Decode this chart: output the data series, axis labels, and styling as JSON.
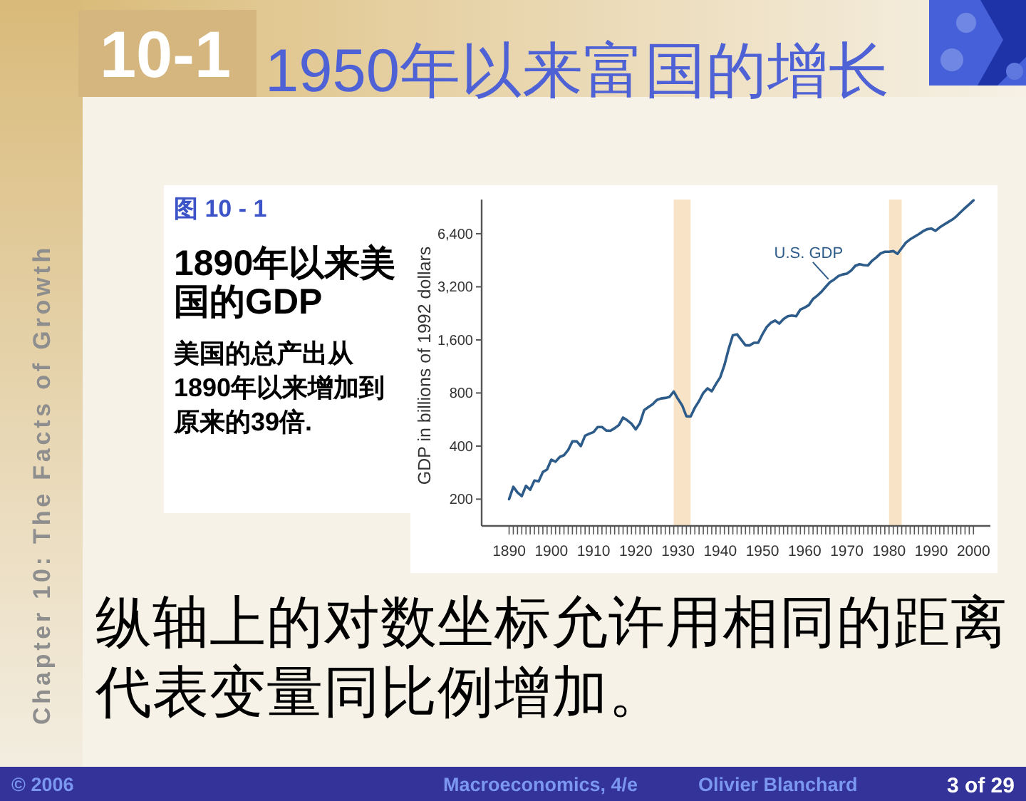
{
  "chart_data": {
    "type": "line",
    "title": "1890年以来美国的GDP",
    "subtitle": "美国的总产出从1890年以来增加到原来的39倍.",
    "ylabel": "GDP in billions of 1992 dollars",
    "annotations": [
      "10-1",
      "1950年以来富国的增长",
      "图 10 - 1",
      "纵轴上的对数坐标允许用相同的距离代表变量同比例增加。",
      "Chapter 10: The Facts of Growth",
      "© 2006",
      "Macroeconomics, 4/e",
      "Olivier Blanchard",
      "3 of 29"
    ],
    "log": true,
    "xlim": [
      1883.5,
      2004
    ],
    "ylim": [
      141,
      10000
    ],
    "yticks": [
      200,
      400,
      800,
      {
        "value": 1600,
        "label": "1,600"
      },
      {
        "value": 3200,
        "label": "3,200"
      },
      {
        "value": 6400,
        "label": "6,400"
      }
    ],
    "xticks": [
      1890,
      {
        "value": 1891,
        "label": null
      },
      {
        "value": 1892,
        "label": null
      },
      {
        "value": 1893,
        "label": null
      },
      {
        "value": 1894,
        "label": null
      },
      {
        "value": 1895,
        "label": null
      },
      {
        "value": 1896,
        "label": null
      },
      {
        "value": 1897,
        "label": null
      },
      {
        "value": 1898,
        "label": null
      },
      {
        "value": 1899,
        "label": null
      },
      1900,
      {
        "value": 1901,
        "label": null
      },
      {
        "value": 1902,
        "label": null
      },
      {
        "value": 1903,
        "label": null
      },
      {
        "value": 1904,
        "label": null
      },
      {
        "value": 1905,
        "label": null
      },
      {
        "value": 1906,
        "label": null
      },
      {
        "value": 1907,
        "label": null
      },
      {
        "value": 1908,
        "label": null
      },
      {
        "value": 1909,
        "label": null
      },
      1910,
      {
        "value": 1911,
        "label": null
      },
      {
        "value": 1912,
        "label": null
      },
      {
        "value": 1913,
        "label": null
      },
      {
        "value": 1914,
        "label": null
      },
      {
        "value": 1915,
        "label": null
      },
      {
        "value": 1916,
        "label": null
      },
      {
        "value": 1917,
        "label": null
      },
      {
        "value": 1918,
        "label": null
      },
      {
        "value": 1919,
        "label": null
      },
      1920,
      {
        "value": 1921,
        "label": null
      },
      {
        "value": 1922,
        "label": null
      },
      {
        "value": 1923,
        "label": null
      },
      {
        "value": 1924,
        "label": null
      },
      {
        "value": 1925,
        "label": null
      },
      {
        "value": 1926,
        "label": null
      },
      {
        "value": 1927,
        "label": null
      },
      {
        "value": 1928,
        "label": null
      },
      {
        "value": 1929,
        "label": null
      },
      1930,
      {
        "value": 1931,
        "label": null
      },
      {
        "value": 1932,
        "label": null
      },
      {
        "value": 1933,
        "label": null
      },
      {
        "value": 1934,
        "label": null
      },
      {
        "value": 1935,
        "label": null
      },
      {
        "value": 1936,
        "label": null
      },
      {
        "value": 1937,
        "label": null
      },
      {
        "value": 1938,
        "label": null
      },
      {
        "value": 1939,
        "label": null
      },
      1940,
      {
        "value": 1941,
        "label": null
      },
      {
        "value": 1942,
        "label": null
      },
      {
        "value": 1943,
        "label": null
      },
      {
        "value": 1944,
        "label": null
      },
      {
        "value": 1945,
        "label": null
      },
      {
        "value": 1946,
        "label": null
      },
      {
        "value": 1947,
        "label": null
      },
      {
        "value": 1948,
        "label": null
      },
      {
        "value": 1949,
        "label": null
      },
      1950,
      {
        "value": 1951,
        "label": null
      },
      {
        "value": 1952,
        "label": null
      },
      {
        "value": 1953,
        "label": null
      },
      {
        "value": 1954,
        "label": null
      },
      {
        "value": 1955,
        "label": null
      },
      {
        "value": 1956,
        "label": null
      },
      {
        "value": 1957,
        "label": null
      },
      {
        "value": 1958,
        "label": null
      },
      {
        "value": 1959,
        "label": null
      },
      1960,
      {
        "value": 1961,
        "label": null
      },
      {
        "value": 1962,
        "label": null
      },
      {
        "value": 1963,
        "label": null
      },
      {
        "value": 1964,
        "label": null
      },
      {
        "value": 1965,
        "label": null
      },
      {
        "value": 1966,
        "label": null
      },
      {
        "value": 1967,
        "label": null
      },
      {
        "value": 1968,
        "label": null
      },
      {
        "value": 1969,
        "label": null
      },
      1970,
      {
        "value": 1971,
        "label": null
      },
      {
        "value": 1972,
        "label": null
      },
      {
        "value": 1973,
        "label": null
      },
      {
        "value": 1974,
        "label": null
      },
      {
        "value": 1975,
        "label": null
      },
      {
        "value": 1976,
        "label": null
      },
      {
        "value": 1977,
        "label": null
      },
      {
        "value": 1978,
        "label": null
      },
      {
        "value": 1979,
        "label": null
      },
      1980,
      {
        "value": 1981,
        "label": null
      },
      {
        "value": 1982,
        "label": null
      },
      {
        "value": 1983,
        "label": null
      },
      {
        "value": 1984,
        "label": null
      },
      {
        "value": 1985,
        "label": null
      },
      {
        "value": 1986,
        "label": null
      },
      {
        "value": 1987,
        "label": null
      },
      {
        "value": 1988,
        "label": null
      },
      {
        "value": 1989,
        "label": null
      },
      1990,
      {
        "value": 1991,
        "label": null
      },
      {
        "value": 1992,
        "label": null
      },
      {
        "value": 1993,
        "label": null
      },
      {
        "value": 1994,
        "label": null
      },
      {
        "value": 1995,
        "label": null
      },
      {
        "value": 1996,
        "label": null
      },
      {
        "value": 1997,
        "label": null
      },
      {
        "value": 1998,
        "label": null
      },
      {
        "value": 1999,
        "label": null
      },
      2000
    ],
    "bands": [
      {
        "axis": "x",
        "from": 1929,
        "to": 1933,
        "color": "#f8e3c6"
      },
      {
        "axis": "x",
        "from": 1980,
        "to": 1983,
        "color": "#f8e3c6"
      }
    ],
    "x": [
      1890,
      1891,
      1892,
      1893,
      1894,
      1895,
      1896,
      1897,
      1898,
      1899,
      1900,
      1901,
      1902,
      1903,
      1904,
      1905,
      1906,
      1907,
      1908,
      1909,
      1910,
      1911,
      1912,
      1913,
      1914,
      1915,
      1916,
      1917,
      1918,
      1919,
      1920,
      1921,
      1922,
      1923,
      1924,
      1925,
      1926,
      1927,
      1928,
      1929,
      1930,
      1931,
      1932,
      1933,
      1934,
      1935,
      1936,
      1937,
      1938,
      1939,
      1940,
      1941,
      1942,
      1943,
      1944,
      1945,
      1946,
      1947,
      1948,
      1949,
      1950,
      1951,
      1952,
      1953,
      1954,
      1955,
      1956,
      1957,
      1958,
      1959,
      1960,
      1961,
      1962,
      1963,
      1964,
      1965,
      1966,
      1967,
      1968,
      1969,
      1970,
      1971,
      1972,
      1973,
      1974,
      1975,
      1976,
      1977,
      1978,
      1979,
      1980,
      1981,
      1982,
      1983,
      1984,
      1985,
      1986,
      1987,
      1988,
      1989,
      1990,
      1991,
      1992,
      1993,
      1994,
      1995,
      1996,
      1997,
      1998,
      1999,
      2000
    ],
    "series": [
      {
        "name": "U.S. GDP",
        "color": "#2e5c8a",
        "values": [
          200,
          235,
          218,
          208,
          238,
          226,
          255,
          252,
          285,
          295,
          335,
          326,
          347,
          355,
          380,
          425,
          426,
          400,
          458,
          470,
          480,
          513,
          513,
          490,
          488,
          505,
          526,
          580,
          560,
          535,
          497,
          540,
          640,
          665,
          690,
          730,
          745,
          750,
          760,
          815,
          740,
          680,
          590,
          588,
          660,
          720,
          800,
          850,
          818,
          900,
          980,
          1150,
          1420,
          1700,
          1720,
          1600,
          1490,
          1490,
          1540,
          1540,
          1720,
          1890,
          2000,
          2060,
          1980,
          2100,
          2180,
          2200,
          2180,
          2380,
          2440,
          2520,
          2730,
          2850,
          3000,
          3200,
          3400,
          3520,
          3680,
          3760,
          3800,
          3950,
          4210,
          4300,
          4250,
          4230,
          4500,
          4700,
          4950,
          5060,
          5060,
          5100,
          4920,
          5300,
          5700,
          5950,
          6150,
          6350,
          6600,
          6790,
          6850,
          6650,
          6950,
          7200,
          7450,
          7700,
          8050,
          8500,
          8950,
          9400,
          9900
        ]
      }
    ]
  }
}
